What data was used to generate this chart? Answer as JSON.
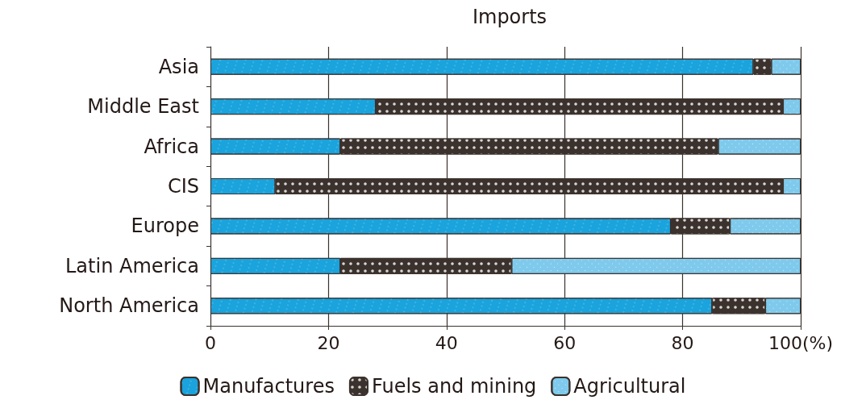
{
  "chart_data": {
    "type": "bar",
    "orientation": "horizontal",
    "stacked": true,
    "title": "Imports",
    "categories": [
      "Asia",
      "Middle East",
      "Africa",
      "CIS",
      "Europe",
      "Latin America",
      "North America"
    ],
    "series": [
      {
        "name": "Manufactures",
        "color": "#1aa3dc",
        "values": [
          92,
          28,
          22,
          11,
          78,
          22,
          85
        ]
      },
      {
        "name": "Fuels and mining",
        "color": "#3b322e",
        "values": [
          3,
          69,
          64,
          86,
          10,
          29,
          9
        ]
      },
      {
        "name": "Agricultural",
        "color": "#7fcaec",
        "values": [
          5,
          3,
          14,
          3,
          12,
          49,
          6
        ]
      }
    ],
    "xlim": [
      0,
      100
    ],
    "xticks": [
      0,
      20,
      40,
      60,
      80,
      {
        "value": 100,
        "label": "100(%)"
      }
    ],
    "grid": "x",
    "legend": "bottom"
  }
}
